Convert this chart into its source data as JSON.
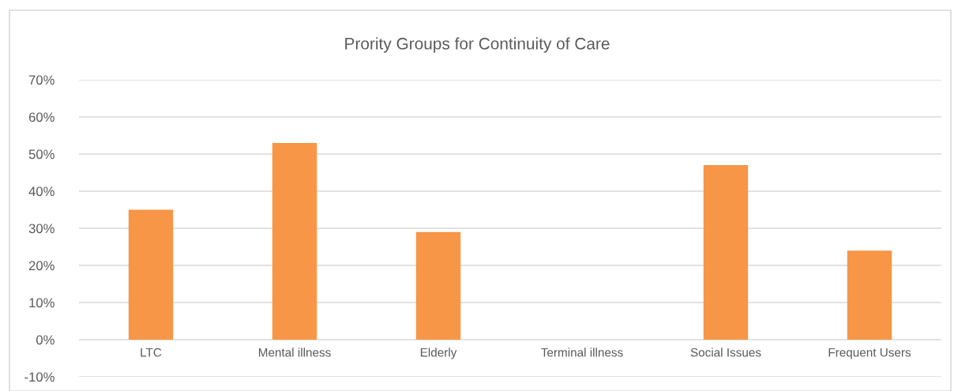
{
  "chart_data": {
    "type": "bar",
    "title": "Prority Groups for Continuity of Care",
    "categories": [
      "LTC",
      "Mental illness",
      "Elderly",
      "Terminal illness",
      "Social Issues",
      "Frequent Users"
    ],
    "values": [
      35,
      53,
      29,
      0,
      47,
      24
    ],
    "color": "#f79646",
    "ylim": [
      -10,
      70
    ],
    "yticks": [
      {
        "value": -10,
        "label": "-10%"
      },
      {
        "value": 0,
        "label": "0%"
      },
      {
        "value": 10,
        "label": "10%"
      },
      {
        "value": 20,
        "label": "20%"
      },
      {
        "value": 30,
        "label": "30%"
      },
      {
        "value": 40,
        "label": "40%"
      },
      {
        "value": 50,
        "label": "50%"
      },
      {
        "value": 60,
        "label": "60%"
      },
      {
        "value": 70,
        "label": "70%"
      }
    ],
    "grid": "y",
    "legend": false
  }
}
